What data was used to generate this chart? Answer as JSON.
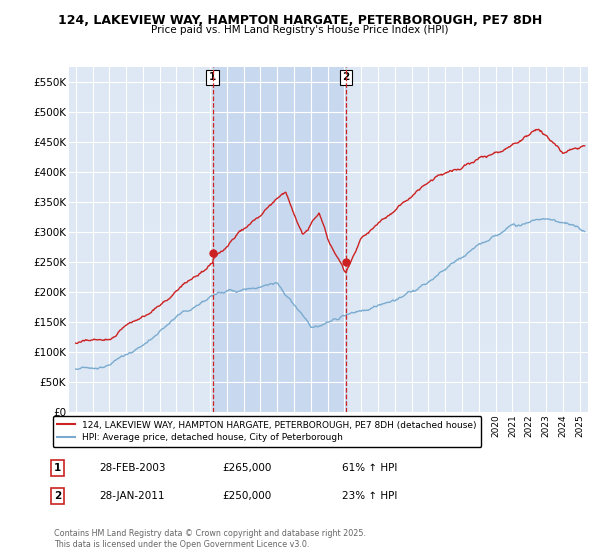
{
  "title": "124, LAKEVIEW WAY, HAMPTON HARGATE, PETERBOROUGH, PE7 8DH",
  "subtitle": "Price paid vs. HM Land Registry's House Price Index (HPI)",
  "ylim": [
    0,
    575000
  ],
  "yticks": [
    0,
    50000,
    100000,
    150000,
    200000,
    250000,
    300000,
    350000,
    400000,
    450000,
    500000,
    550000
  ],
  "ytick_labels": [
    "£0",
    "£50K",
    "£100K",
    "£150K",
    "£200K",
    "£250K",
    "£300K",
    "£350K",
    "£400K",
    "£450K",
    "£500K",
    "£550K"
  ],
  "hpi_color": "#7aabcf",
  "price_color": "#cc2222",
  "vline_color": "#cc2222",
  "bg_color": "#dde8f4",
  "highlight_color": "#c8d8ee",
  "grid_color": "#ffffff",
  "sale1_x": 2003.15,
  "sale1_y": 265000,
  "sale1_label": "1",
  "sale1_date": "28-FEB-2003",
  "sale1_price": "£265,000",
  "sale1_hpi": "61% ↑ HPI",
  "sale2_x": 2011.08,
  "sale2_y": 250000,
  "sale2_label": "2",
  "sale2_date": "28-JAN-2011",
  "sale2_price": "£250,000",
  "sale2_hpi": "23% ↑ HPI",
  "legend_line1": "124, LAKEVIEW WAY, HAMPTON HARGATE, PETERBOROUGH, PE7 8DH (detached house)",
  "legend_line2": "HPI: Average price, detached house, City of Peterborough",
  "footer": "Contains HM Land Registry data © Crown copyright and database right 2025.\nThis data is licensed under the Open Government Licence v3.0.",
  "xmin": 1994.6,
  "xmax": 2025.5
}
